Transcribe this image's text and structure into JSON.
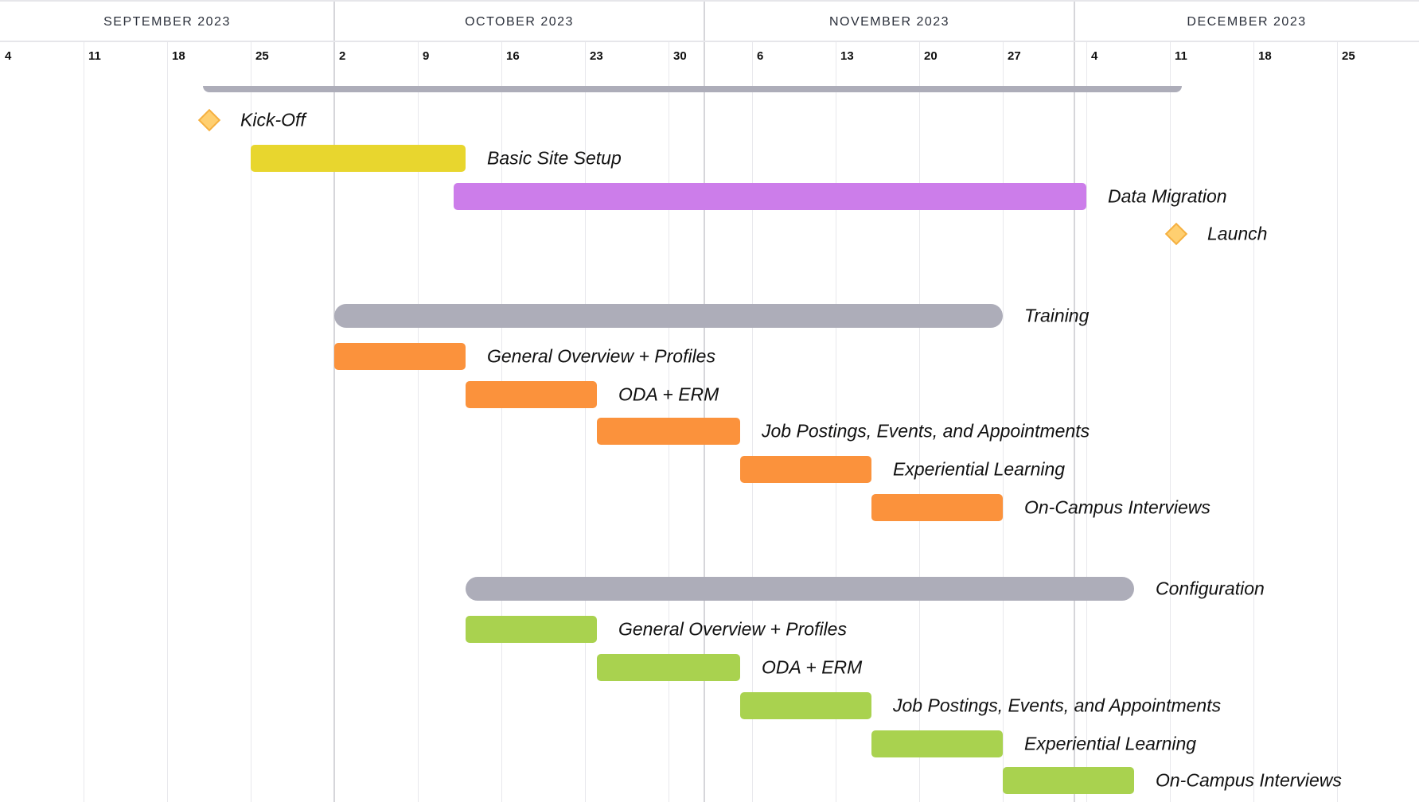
{
  "timeline": {
    "start": "2023-09-04",
    "months": [
      {
        "label": "SEPTEMBER 2023",
        "start": "2023-09-04",
        "end": "2023-10-02"
      },
      {
        "label": "OCTOBER 2023",
        "start": "2023-10-02",
        "end": "2023-11-02"
      },
      {
        "label": "NOVEMBER 2023",
        "start": "2023-11-02",
        "end": "2023-12-03"
      },
      {
        "label": "DECEMBER 2023",
        "start": "2023-12-03",
        "end": "2024-01-01"
      }
    ],
    "weeks": [
      "4",
      "11",
      "18",
      "25",
      "2",
      "9",
      "16",
      "23",
      "30",
      "6",
      "13",
      "20",
      "27",
      "4",
      "11",
      "18",
      "25"
    ]
  },
  "colors": {
    "group": "#adadb9",
    "milestone": "#ffcf70",
    "setup": "#e8d62e",
    "migration": "#cc7dea",
    "training": "#fb923c",
    "config": "#a9d24f"
  },
  "project_bar": {
    "start": "2023-09-21",
    "end": "2023-12-12"
  },
  "tasks": [
    {
      "name": "Kick-Off",
      "type": "milestone",
      "start": "2023-09-21"
    },
    {
      "name": "Basic Site Setup",
      "type": "task",
      "start": "2023-09-25",
      "end": "2023-10-13",
      "color": "setup"
    },
    {
      "name": "Data Migration",
      "type": "task",
      "start": "2023-10-12",
      "end": "2023-12-04",
      "color": "migration"
    },
    {
      "name": "Launch",
      "type": "milestone",
      "start": "2023-12-11"
    },
    {
      "name": "Training",
      "type": "group",
      "start": "2023-10-02",
      "end": "2023-11-27"
    },
    {
      "name": "General Overview + Profiles",
      "type": "task",
      "start": "2023-10-02",
      "end": "2023-10-13",
      "color": "training"
    },
    {
      "name": "ODA + ERM",
      "type": "task",
      "start": "2023-10-13",
      "end": "2023-10-24",
      "color": "training"
    },
    {
      "name": "Job Postings, Events, and Appointments",
      "type": "task",
      "start": "2023-10-24",
      "end": "2023-11-05",
      "color": "training"
    },
    {
      "name": "Experiential Learning",
      "type": "task",
      "start": "2023-11-05",
      "end": "2023-11-16",
      "color": "training"
    },
    {
      "name": "On-Campus Interviews",
      "type": "task",
      "start": "2023-11-16",
      "end": "2023-11-27",
      "color": "training"
    },
    {
      "name": "Configuration",
      "type": "group",
      "start": "2023-10-13",
      "end": "2023-12-08"
    },
    {
      "name": "General Overview + Profiles",
      "type": "task",
      "start": "2023-10-13",
      "end": "2023-10-24",
      "color": "config"
    },
    {
      "name": "ODA + ERM",
      "type": "task",
      "start": "2023-10-24",
      "end": "2023-11-05",
      "color": "config"
    },
    {
      "name": "Job Postings, Events, and Appointments",
      "type": "task",
      "start": "2023-11-05",
      "end": "2023-11-16",
      "color": "config"
    },
    {
      "name": "Experiential Learning",
      "type": "task",
      "start": "2023-11-16",
      "end": "2023-11-27",
      "color": "config"
    },
    {
      "name": "On-Campus Interviews",
      "type": "task",
      "start": "2023-11-27",
      "end": "2023-12-08",
      "color": "config"
    }
  ]
}
